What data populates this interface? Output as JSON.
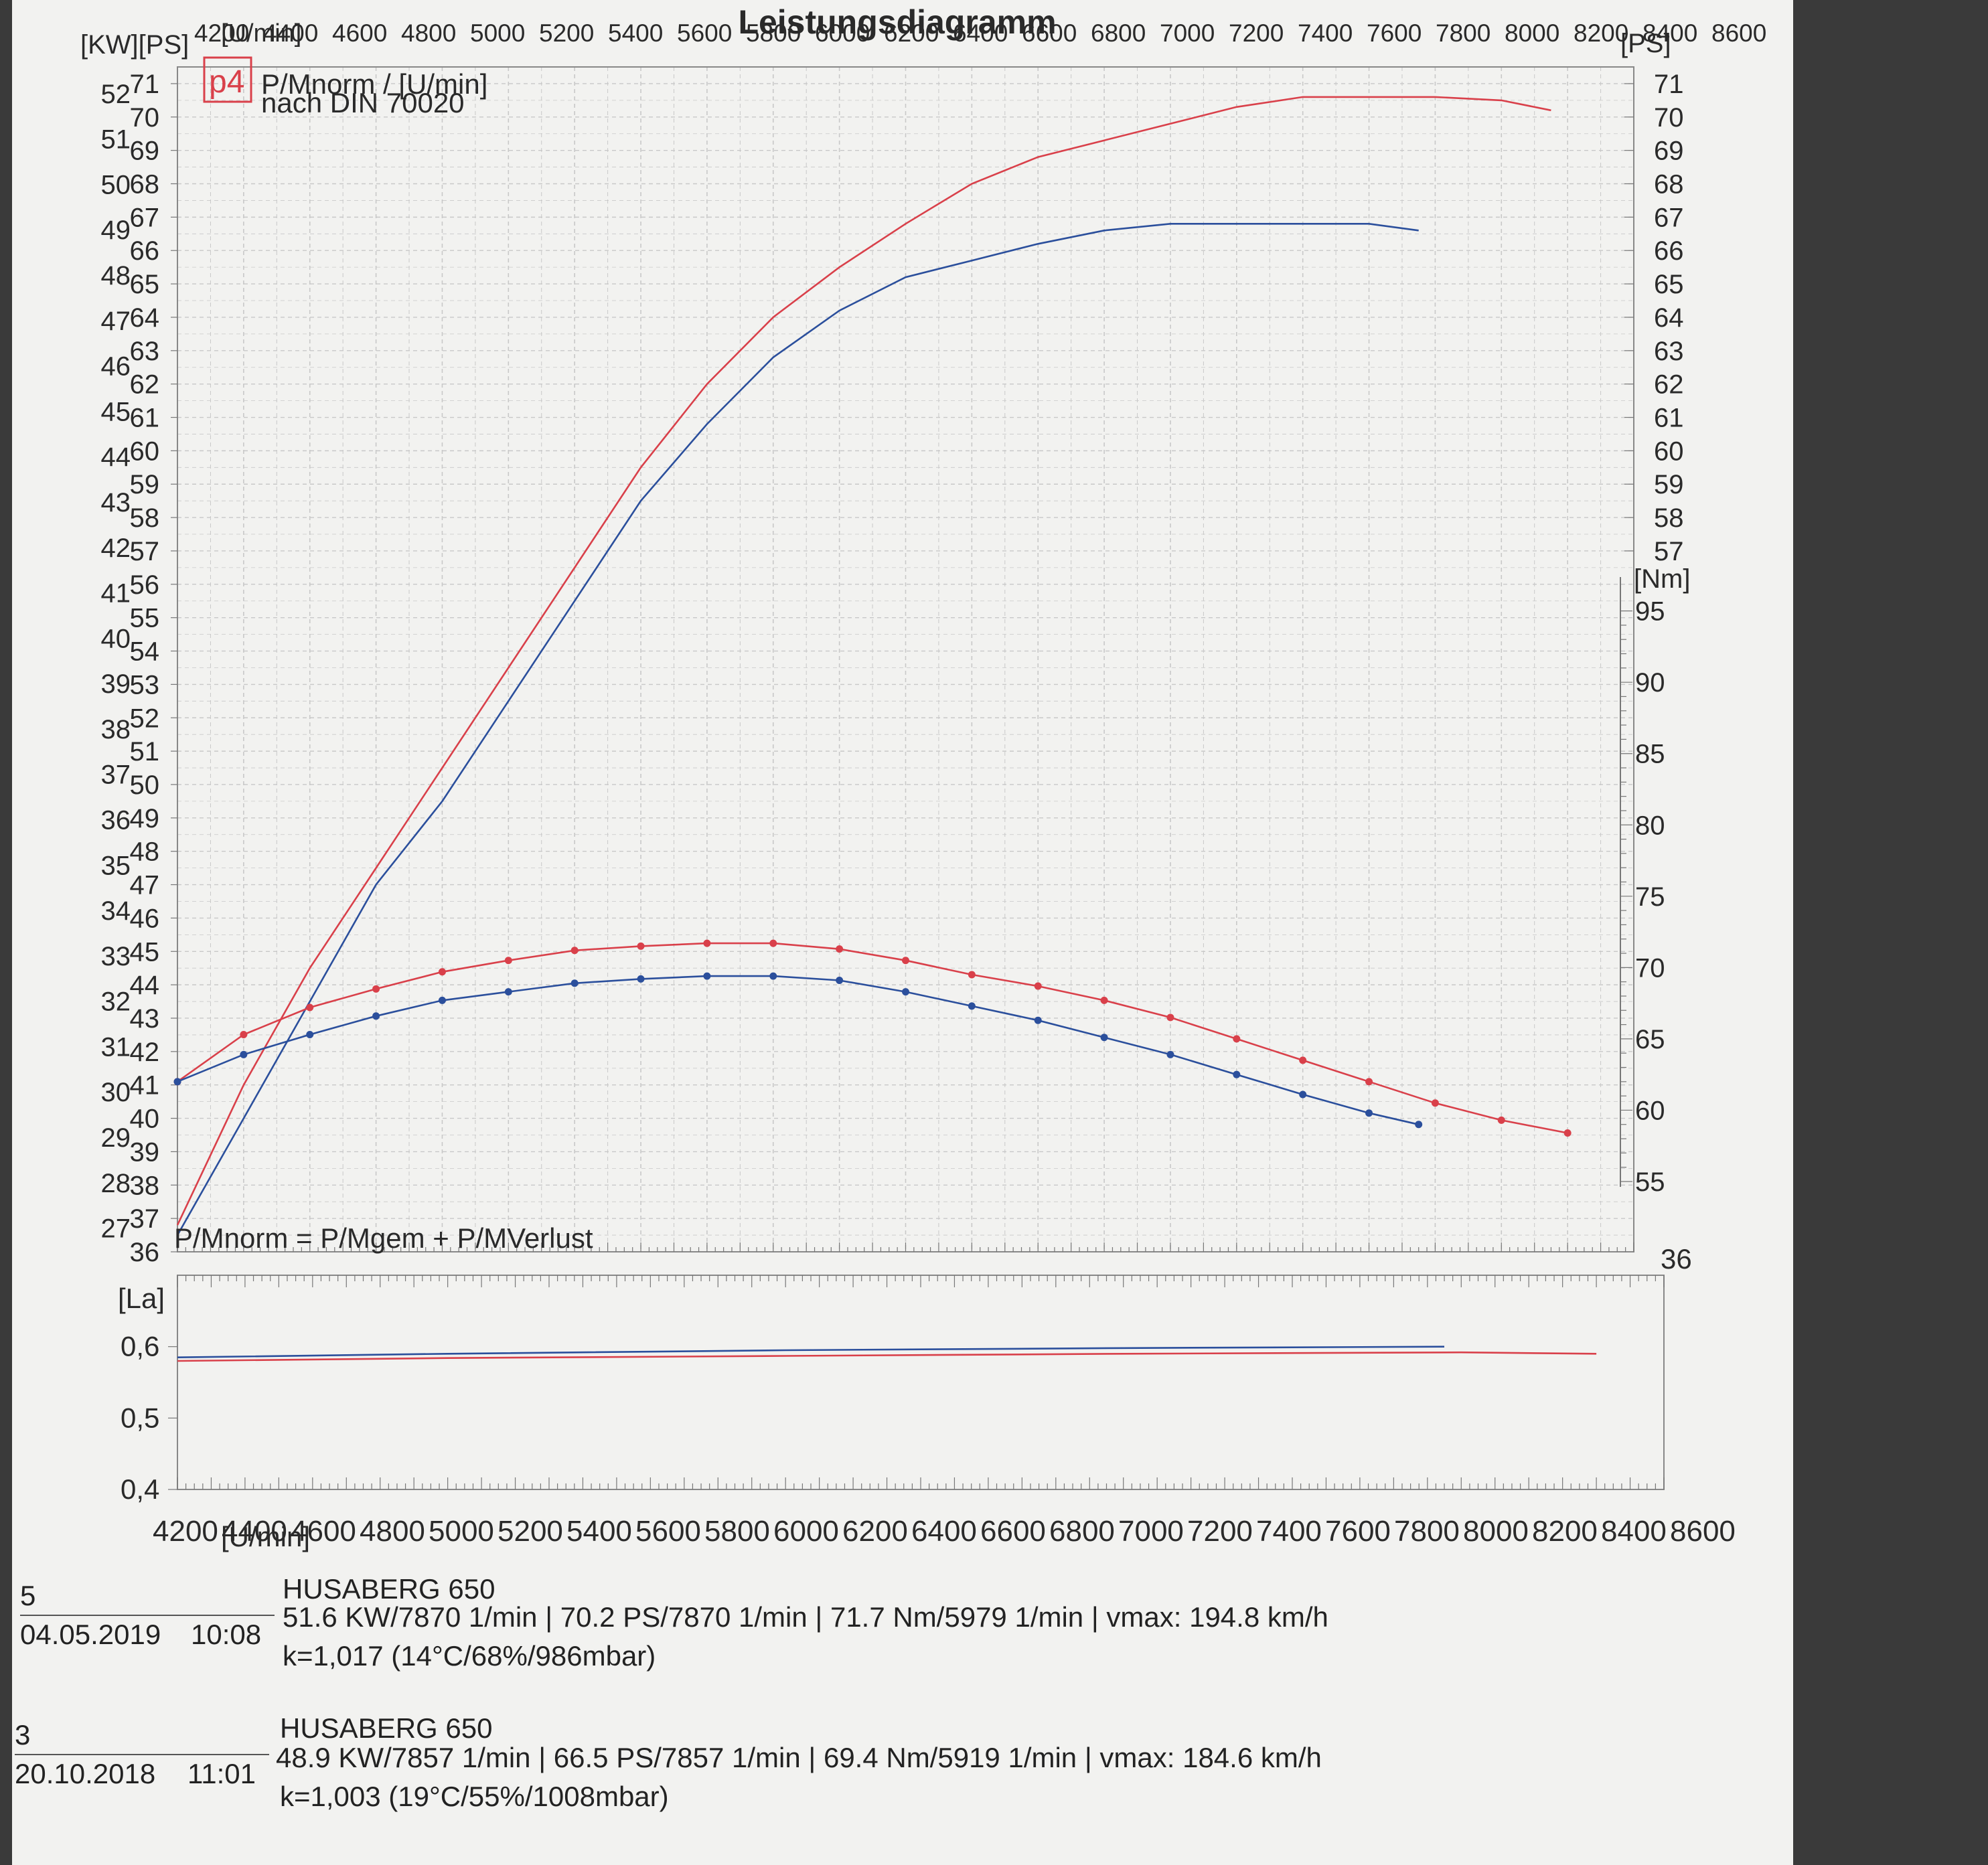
{
  "colors": {
    "paper": "#f2f2f0",
    "grid": "#c8c8c8",
    "red": "#d9404a",
    "blue": "#2b4f9c",
    "ink": "#2a2a2a",
    "background": "#3a3a3a"
  },
  "header": {
    "title": "Leistungsdiagramm",
    "left_units": "[KW][PS]",
    "right_units": "[PS]",
    "torque_unit": "[Nm]",
    "rpm_unit": "[U/min]",
    "logo": "p4",
    "legend_line1": "P/Mnorm / [U/min]",
    "legend_line2": "nach DIN 70020",
    "formula": "P/Mnorm = P/Mgem + P/MVerlust"
  },
  "chart_data": [
    {
      "type": "line",
      "title": "Leistungsdiagramm",
      "xlabel": "[U/min]",
      "xlim": [
        4200,
        8600
      ],
      "x_ticks": [
        4200,
        4400,
        4600,
        4800,
        5000,
        5200,
        5400,
        5600,
        5800,
        6000,
        6200,
        6400,
        6600,
        6800,
        7000,
        7200,
        7400,
        7600,
        7800,
        8000,
        8200,
        8400,
        8600
      ],
      "kw_ticks": [
        27,
        28,
        29,
        30,
        31,
        32,
        33,
        34,
        35,
        36,
        37,
        38,
        39,
        40,
        41,
        42,
        43,
        44,
        45,
        46,
        47,
        48,
        49,
        50,
        51,
        52
      ],
      "ps_ticks": [
        36,
        37,
        38,
        39,
        40,
        41,
        42,
        43,
        44,
        45,
        46,
        47,
        48,
        49,
        50,
        51,
        52,
        53,
        54,
        55,
        56,
        57,
        58,
        59,
        60,
        61,
        62,
        63,
        64,
        65,
        66,
        67,
        68,
        69,
        70,
        71
      ],
      "ps_right_ticks": [
        57,
        58,
        59,
        60,
        61,
        62,
        63,
        64,
        65,
        66,
        67,
        68,
        69,
        70,
        71
      ],
      "nm_ticks": [
        55,
        60,
        65,
        70,
        75,
        80,
        85,
        90,
        95
      ],
      "ps_bottom_right": "36",
      "ylim_ps": [
        36,
        71.5
      ],
      "ylim_nm": [
        55,
        97
      ],
      "series": [
        {
          "name": "5",
          "kind": "power_ps",
          "color": "#d9404a",
          "points": [
            [
              4200,
              36.8
            ],
            [
              4400,
              41
            ],
            [
              4600,
              44.5
            ],
            [
              4800,
              47.5
            ],
            [
              5000,
              50.5
            ],
            [
              5200,
              53.5
            ],
            [
              5400,
              56.5
            ],
            [
              5600,
              59.5
            ],
            [
              5800,
              62
            ],
            [
              6000,
              64
            ],
            [
              6200,
              65.5
            ],
            [
              6400,
              66.8
            ],
            [
              6600,
              68
            ],
            [
              6800,
              68.8
            ],
            [
              7000,
              69.3
            ],
            [
              7200,
              69.8
            ],
            [
              7400,
              70.3
            ],
            [
              7600,
              70.6
            ],
            [
              7800,
              70.6
            ],
            [
              8000,
              70.6
            ],
            [
              8200,
              70.5
            ],
            [
              8350,
              70.2
            ]
          ]
        },
        {
          "name": "3",
          "kind": "power_ps",
          "color": "#2b4f9c",
          "points": [
            [
              4200,
              36.5
            ],
            [
              4400,
              40
            ],
            [
              4600,
              43.5
            ],
            [
              4800,
              47
            ],
            [
              5000,
              49.5
            ],
            [
              5200,
              52.5
            ],
            [
              5400,
              55.5
            ],
            [
              5600,
              58.5
            ],
            [
              5800,
              60.8
            ],
            [
              6000,
              62.8
            ],
            [
              6200,
              64.2
            ],
            [
              6400,
              65.2
            ],
            [
              6600,
              65.7
            ],
            [
              6800,
              66.2
            ],
            [
              7000,
              66.6
            ],
            [
              7200,
              66.8
            ],
            [
              7400,
              66.8
            ],
            [
              7600,
              66.8
            ],
            [
              7800,
              66.8
            ],
            [
              7950,
              66.6
            ]
          ]
        },
        {
          "name": "5",
          "kind": "torque_nm",
          "color": "#d9404a",
          "points": [
            [
              4200,
              62
            ],
            [
              4400,
              65.3
            ],
            [
              4600,
              67.2
            ],
            [
              4800,
              68.5
            ],
            [
              5000,
              69.7
            ],
            [
              5200,
              70.5
            ],
            [
              5400,
              71.2
            ],
            [
              5600,
              71.5
            ],
            [
              5800,
              71.7
            ],
            [
              6000,
              71.7
            ],
            [
              6200,
              71.3
            ],
            [
              6400,
              70.5
            ],
            [
              6600,
              69.5
            ],
            [
              6800,
              68.7
            ],
            [
              7000,
              67.7
            ],
            [
              7200,
              66.5
            ],
            [
              7400,
              65
            ],
            [
              7600,
              63.5
            ],
            [
              7800,
              62
            ],
            [
              8000,
              60.5
            ],
            [
              8200,
              59.3
            ],
            [
              8400,
              58.4
            ]
          ]
        },
        {
          "name": "3",
          "kind": "torque_nm",
          "color": "#2b4f9c",
          "points": [
            [
              4200,
              62
            ],
            [
              4400,
              63.9
            ],
            [
              4600,
              65.3
            ],
            [
              4800,
              66.6
            ],
            [
              5000,
              67.7
            ],
            [
              5200,
              68.3
            ],
            [
              5400,
              68.9
            ],
            [
              5600,
              69.2
            ],
            [
              5800,
              69.4
            ],
            [
              6000,
              69.4
            ],
            [
              6200,
              69.1
            ],
            [
              6400,
              68.3
            ],
            [
              6600,
              67.3
            ],
            [
              6800,
              66.3
            ],
            [
              7000,
              65.1
            ],
            [
              7200,
              63.9
            ],
            [
              7400,
              62.5
            ],
            [
              7600,
              61.1
            ],
            [
              7800,
              59.8
            ],
            [
              7950,
              59
            ]
          ]
        }
      ]
    },
    {
      "type": "line",
      "ylabel": "[La]",
      "xlabel": "[U/min]",
      "xlim": [
        4200,
        8600
      ],
      "ylim": [
        0.4,
        0.7
      ],
      "y_ticks": [
        "0,4",
        "0,5",
        "0,6"
      ],
      "x_ticks": [
        4200,
        4400,
        4600,
        4800,
        5000,
        5200,
        5400,
        5600,
        5800,
        6000,
        6200,
        6400,
        6600,
        6800,
        7000,
        7200,
        7400,
        7600,
        7800,
        8000,
        8200,
        8400,
        8600
      ],
      "series": [
        {
          "name": "3",
          "color": "#2b4f9c",
          "points": [
            [
              4200,
              0.585
            ],
            [
              5000,
              0.59
            ],
            [
              6000,
              0.595
            ],
            [
              7000,
              0.598
            ],
            [
              7950,
              0.6
            ]
          ]
        },
        {
          "name": "5",
          "color": "#d9404a",
          "points": [
            [
              4200,
              0.58
            ],
            [
              5000,
              0.584
            ],
            [
              6000,
              0.587
            ],
            [
              7000,
              0.59
            ],
            [
              8000,
              0.592
            ],
            [
              8400,
              0.59
            ]
          ]
        }
      ]
    }
  ],
  "runs": [
    {
      "number": "5",
      "date": "04.05.2019",
      "time": "10:08",
      "model": "HUSABERG 650",
      "stats": "51.6 KW/7870 1/min  |  70.2 PS/7870 1/min  |  71.7 Nm/5979 1/min | vmax: 194.8 km/h",
      "conditions": "k=1,017 (14°C/68%/986mbar)"
    },
    {
      "number": "3",
      "date": "20.10.2018",
      "time": "11:01",
      "model": "HUSABERG 650",
      "stats": "48.9 KW/7857 1/min  |  66.5 PS/7857 1/min  |  69.4 Nm/5919 1/min | vmax: 184.6 km/h",
      "conditions": "k=1,003 (19°C/55%/1008mbar)"
    }
  ]
}
